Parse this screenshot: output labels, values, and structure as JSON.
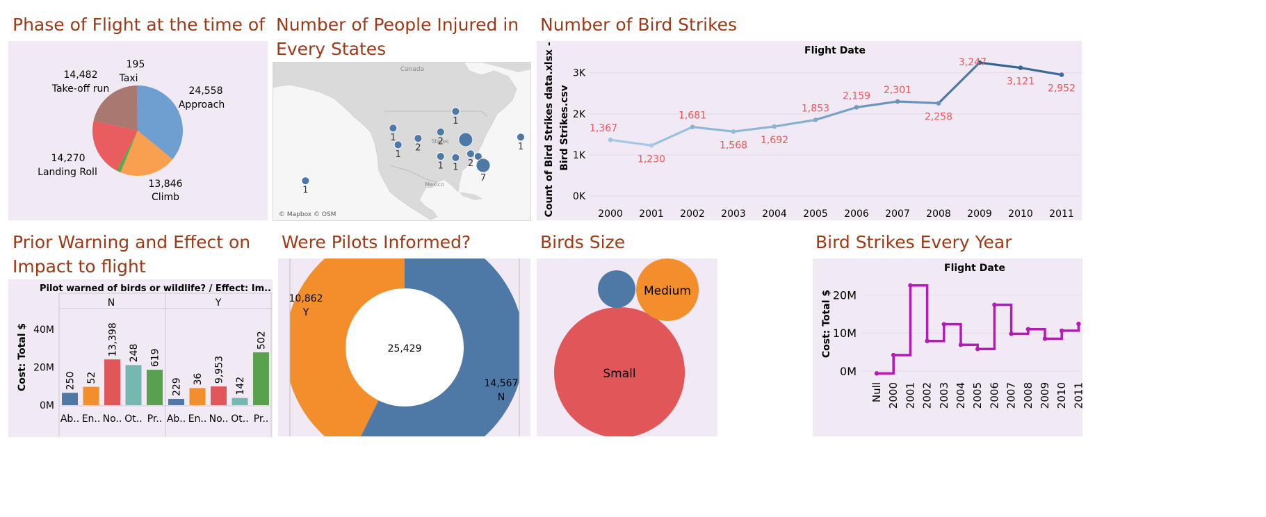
{
  "titles": {
    "phase": "Phase of Flight at the time of Strike",
    "injured": "Number of People Injured in Every States",
    "strikes": "Number of Bird Strikes",
    "warning": "Prior Warning and Effect on Impact to flight",
    "pilots": "Were Pilots Informed?",
    "birds": "Birds Size",
    "yearly": "Bird Strikes Every Year"
  },
  "map": {
    "labels": {
      "canada": "Canada",
      "states": "States",
      "mexico": "Mexico",
      "attribution": "© Mapbox © OSM"
    },
    "bubbles": [
      {
        "value": 1,
        "label": "1",
        "lon": -157,
        "lat": 21,
        "size": "small"
      },
      {
        "value": 1,
        "label": "1",
        "lon": -122,
        "lat": 41.5,
        "size": "small"
      },
      {
        "value": 1,
        "label": "1",
        "lon": -120,
        "lat": 35,
        "size": "small"
      },
      {
        "value": 2,
        "label": "2",
        "lon": -112,
        "lat": 37.5,
        "size": "small"
      },
      {
        "value": 2,
        "label": "2",
        "lon": -103,
        "lat": 40,
        "size": "small"
      },
      {
        "value": 1,
        "label": "1",
        "lon": -97,
        "lat": 48,
        "size": "small"
      },
      {
        "value": null,
        "label": "",
        "lon": -93,
        "lat": 37,
        "size": "large"
      },
      {
        "value": 1,
        "label": "1",
        "lon": -71,
        "lat": 38,
        "size": "small"
      },
      {
        "value": 1,
        "label": "1",
        "lon": -103,
        "lat": 30.5,
        "size": "small"
      },
      {
        "value": 1,
        "label": "1",
        "lon": -97,
        "lat": 30,
        "size": "small"
      },
      {
        "value": 2,
        "label": "2",
        "lon": -91,
        "lat": 31.5,
        "size": "small"
      },
      {
        "value": null,
        "label": "",
        "lon": -88,
        "lat": 30.5,
        "size": "small"
      },
      {
        "value": 7,
        "label": "7",
        "lon": -86,
        "lat": 27,
        "size": "large"
      }
    ]
  },
  "chart_data": [
    {
      "type": "pie",
      "title": "Phase of Flight at the time of Strike",
      "slices": [
        {
          "label": "Approach",
          "value": 24558,
          "value_label": "24,558",
          "color": "#6f9fd1"
        },
        {
          "label": "Climb",
          "value": 13846,
          "value_label": "13,846",
          "color": "#f8a04f"
        },
        {
          "label": "",
          "value": 1000,
          "value_label": "",
          "color": "#59a84b"
        },
        {
          "label": "Landing Roll",
          "value": 14270,
          "value_label": "14,270",
          "color": "#e95d5f"
        },
        {
          "label": "Take-off run",
          "value": 14482,
          "value_label": "14,482",
          "color": "#a87871"
        },
        {
          "label": "Taxi",
          "value": 195,
          "value_label": "195",
          "color": "#d4766f"
        }
      ]
    },
    {
      "type": "line",
      "title": "Number of Bird Strikes",
      "top_label": "Flight Date",
      "ylabel": "Count of Bird Strikes data.xlsx - Bird Strikes.csv",
      "x": [
        "2000",
        "2001",
        "2002",
        "2003",
        "2004",
        "2005",
        "2006",
        "2007",
        "2008",
        "2009",
        "2010",
        "2011"
      ],
      "values": [
        1367,
        1230,
        1681,
        1568,
        1692,
        1853,
        2159,
        2301,
        2258,
        3247,
        3121,
        2952
      ],
      "value_labels": [
        "1,367",
        "1,230",
        "1,681",
        "1,568",
        "1,692",
        "1,853",
        "2,159",
        "2,301",
        "2,258",
        "3,247",
        "3,121",
        "2,952"
      ],
      "ylim": [
        0,
        3300
      ],
      "yticks": [
        {
          "value": 0,
          "label": "0K"
        },
        {
          "value": 1000,
          "label": "1K"
        },
        {
          "value": 2000,
          "label": "2K"
        },
        {
          "value": 3000,
          "label": "3K"
        }
      ],
      "color_low": "#a6cde8",
      "color_high": "#2f5e8f",
      "label_color": "#e8575a"
    },
    {
      "type": "bar",
      "title": "Prior Warning and Effect on Impact to flight",
      "header": "Pilot warned of birds or wildlife? / Effect: Im..",
      "ylabel": "Cost: Total $",
      "ylim": [
        0,
        50000000
      ],
      "yticks": [
        {
          "value": 0,
          "label": "0M"
        },
        {
          "value": 20000000,
          "label": "20M"
        },
        {
          "value": 40000000,
          "label": "40M"
        }
      ],
      "groups": [
        {
          "name": "N",
          "categories": [
            "Ab..",
            "En..",
            "No..",
            "Ot..",
            "Pr.."
          ],
          "values": [
            6500000,
            9700000,
            24200000,
            21200000,
            18700000
          ],
          "labels": [
            "250",
            "52",
            "13,398",
            "248",
            "619"
          ]
        },
        {
          "name": "Y",
          "categories": [
            "Ab..",
            "En..",
            "No..",
            "Ot..",
            "Pr.."
          ],
          "values": [
            3300000,
            9000000,
            9900000,
            3800000,
            27900000
          ],
          "labels": [
            "229",
            "36",
            "9,953",
            "142",
            "502"
          ]
        }
      ],
      "colors": [
        "#4e79a7",
        "#f28e2b",
        "#e15759",
        "#76b7b2",
        "#59a14f"
      ]
    },
    {
      "type": "pie",
      "title": "Were Pilots Informed?",
      "center_label": "25,429",
      "slices": [
        {
          "label": "N",
          "value": 14567,
          "value_label": "14,567",
          "color": "#4e79a7"
        },
        {
          "label": "Y",
          "value": 10862,
          "value_label": "10,862",
          "color": "#f28e2b"
        }
      ]
    },
    {
      "type": "bubble",
      "title": "Birds Size",
      "items": [
        {
          "label": "Small",
          "value": 100,
          "color": "#e15759"
        },
        {
          "label": "Medium",
          "value": 24,
          "color": "#f28e2b"
        },
        {
          "label": "",
          "value": 7,
          "color": "#4e79a7"
        }
      ]
    },
    {
      "type": "line",
      "title": "Bird Strikes Every Year",
      "top_label": "Flight Date",
      "ylabel": "Cost: Total $",
      "x": [
        "Null",
        "2000",
        "2001",
        "2002",
        "2003",
        "2004",
        "2005",
        "2006",
        "2007",
        "2008",
        "2009",
        "2010",
        "2011"
      ],
      "values": [
        -600000,
        4200000,
        22500000,
        7900000,
        12300000,
        6900000,
        5800000,
        17400000,
        9800000,
        11000000,
        8500000,
        10600000,
        12400000
      ],
      "ylim": [
        -2000000,
        25000000
      ],
      "yticks": [
        {
          "value": 0,
          "label": "0M"
        },
        {
          "value": 10000000,
          "label": "10M"
        },
        {
          "value": 20000000,
          "label": "20M"
        }
      ],
      "step": true,
      "color": "#b41ab4"
    }
  ]
}
